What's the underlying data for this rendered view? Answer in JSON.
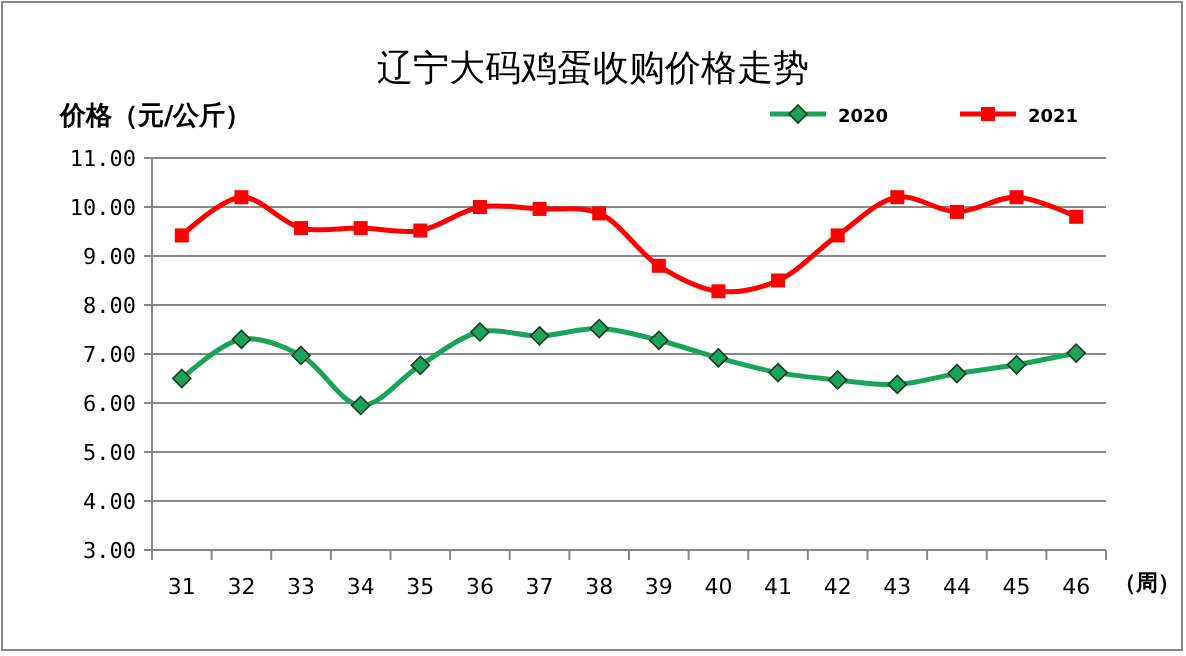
{
  "chart_data": {
    "type": "line",
    "title": "辽宁大码鸡蛋收购价格走势",
    "ylabel": "价格（元/公斤）",
    "xlabel": "（周）",
    "categories": [
      "31",
      "32",
      "33",
      "34",
      "35",
      "36",
      "37",
      "38",
      "39",
      "40",
      "41",
      "42",
      "43",
      "44",
      "45",
      "46"
    ],
    "series": [
      {
        "name": "2020",
        "color": "#1aa35a",
        "marker": "diamond",
        "values": [
          6.5,
          7.3,
          6.97,
          5.95,
          6.77,
          7.45,
          7.37,
          7.52,
          7.28,
          6.92,
          6.62,
          6.47,
          6.38,
          6.6,
          6.78,
          7.02
        ]
      },
      {
        "name": "2021",
        "color": "#ff0000",
        "marker": "square",
        "values": [
          9.42,
          10.2,
          9.57,
          9.57,
          9.52,
          10.0,
          9.96,
          9.87,
          8.8,
          8.28,
          8.5,
          9.42,
          10.2,
          9.9,
          10.2,
          9.8
        ]
      }
    ],
    "ylim": [
      3,
      11
    ],
    "yticks": [
      {
        "value": 3,
        "label": "3.00"
      },
      {
        "value": 4,
        "label": "4.00"
      },
      {
        "value": 5,
        "label": "5.00"
      },
      {
        "value": 6,
        "label": "6.00"
      },
      {
        "value": 7,
        "label": "7.00"
      },
      {
        "value": 8,
        "label": "8.00"
      },
      {
        "value": 9,
        "label": "9.00"
      },
      {
        "value": 10,
        "label": "10.00"
      },
      {
        "value": 11,
        "label": "11.00"
      }
    ],
    "grid": "y",
    "legend": "top right",
    "line_style": "solid"
  }
}
